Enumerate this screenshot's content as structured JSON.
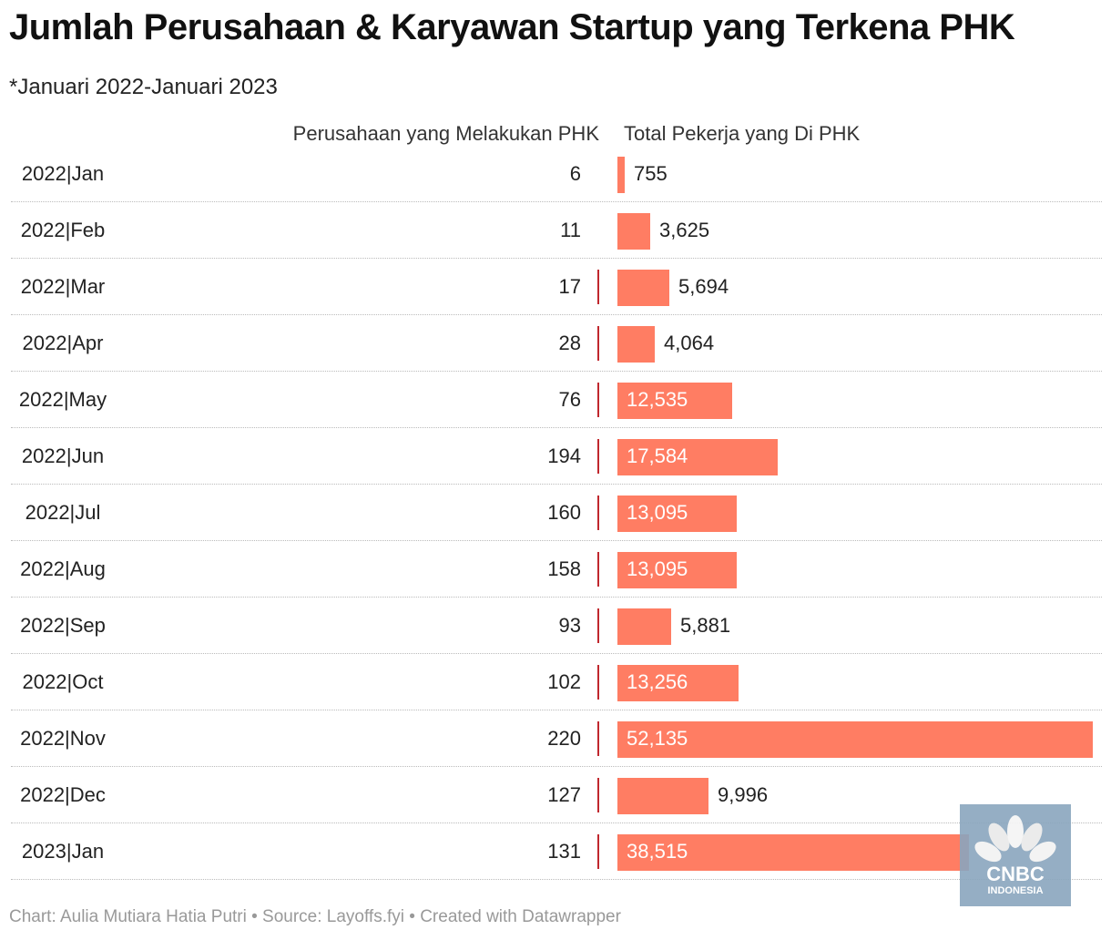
{
  "title": "Jumlah Perusahaan & Karyawan Startup yang Terkena PHK",
  "subtitle": "*Januari 2022-Januari 2023",
  "columns": {
    "left": "Perusahaan yang Melakukan PHK",
    "right": "Total Pekerja yang Di PHK"
  },
  "footer": "Chart: Aulia Mutiara Hatia Putri • Source: Layoffs.fyi • Created with Datawrapper",
  "logo": {
    "text1": "CNBC",
    "text2": "INDONESIA"
  },
  "colors": {
    "bar": "#ff7d63",
    "marker": "#c0272d"
  },
  "chart_data": {
    "type": "table",
    "categories": [
      "2022|Jan",
      "2022|Feb",
      "2022|Mar",
      "2022|Apr",
      "2022|May",
      "2022|Jun",
      "2022|Jul",
      "2022|Aug",
      "2022|Sep",
      "2022|Oct",
      "2022|Nov",
      "2022|Dec",
      "2023|Jan"
    ],
    "series": [
      {
        "name": "Perusahaan yang Melakukan PHK",
        "values": [
          6,
          11,
          17,
          28,
          76,
          194,
          160,
          158,
          93,
          102,
          220,
          127,
          131
        ]
      },
      {
        "name": "Total Pekerja yang Di PHK",
        "values": [
          755,
          3625,
          5694,
          4064,
          12535,
          17584,
          13095,
          13095,
          5881,
          13256,
          52135,
          9996,
          38515
        ]
      }
    ],
    "value_labels": [
      "755",
      "3,625",
      "5,694",
      "4,064",
      "12,535",
      "17,584",
      "13,095",
      "13,095",
      "5,881",
      "13,256",
      "52,135",
      "9,996",
      "38,515"
    ],
    "bar_max": 52135
  }
}
